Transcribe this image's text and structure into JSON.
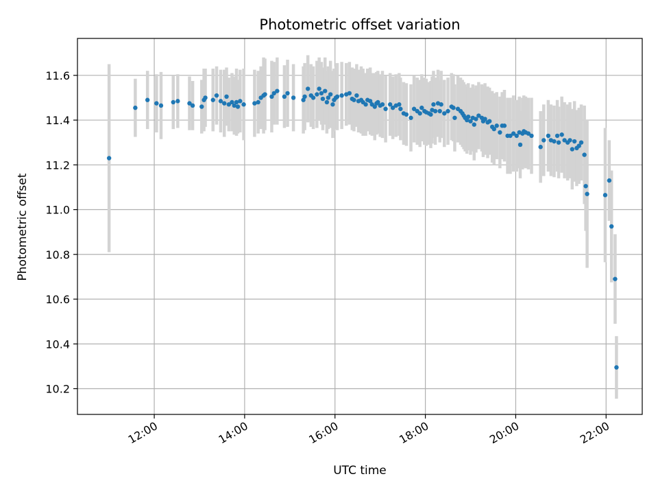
{
  "chart_data": {
    "type": "scatter",
    "title": "Photometric offset variation",
    "xlabel": "UTC time",
    "ylabel": "Photometric offset",
    "x_unit": "hours (UTC)",
    "xlim": [
      10.3,
      22.8
    ],
    "ylim": [
      10.085,
      11.765
    ],
    "x_ticks": [
      {
        "value": 12,
        "label": "12:00"
      },
      {
        "value": 14,
        "label": "14:00"
      },
      {
        "value": 16,
        "label": "16:00"
      },
      {
        "value": 18,
        "label": "18:00"
      },
      {
        "value": 20,
        "label": "20:00"
      },
      {
        "value": 22,
        "label": "22:00"
      }
    ],
    "y_ticks": [
      {
        "value": 10.2,
        "label": "10.2"
      },
      {
        "value": 10.4,
        "label": "10.4"
      },
      {
        "value": 10.6,
        "label": "10.6"
      },
      {
        "value": 10.8,
        "label": "10.8"
      },
      {
        "value": 11.0,
        "label": "11.0"
      },
      {
        "value": 11.2,
        "label": "11.2"
      },
      {
        "value": 11.4,
        "label": "11.4"
      },
      {
        "value": 11.6,
        "label": "11.6"
      }
    ],
    "grid": true,
    "legend": "none",
    "colors": {
      "marker": "#1f77b4",
      "errorbar": "#d3d3d3",
      "grid": "#b0b0b0"
    },
    "series": [
      {
        "marker": "circle",
        "points": [
          [
            11.0,
            11.23,
            0.42
          ],
          [
            11.58,
            11.455,
            0.13
          ],
          [
            11.85,
            11.49,
            0.13
          ],
          [
            12.05,
            11.475,
            0.13
          ],
          [
            12.15,
            11.465,
            0.15
          ],
          [
            12.42,
            11.48,
            0.12
          ],
          [
            12.52,
            11.485,
            0.12
          ],
          [
            12.78,
            11.475,
            0.12
          ],
          [
            12.85,
            11.465,
            0.11
          ],
          [
            13.05,
            11.46,
            0.12
          ],
          [
            13.1,
            11.49,
            0.14
          ],
          [
            13.13,
            11.5,
            0.13
          ],
          [
            13.3,
            11.49,
            0.14
          ],
          [
            13.38,
            11.51,
            0.13
          ],
          [
            13.47,
            11.485,
            0.14
          ],
          [
            13.55,
            11.475,
            0.15
          ],
          [
            13.6,
            11.505,
            0.13
          ],
          [
            13.65,
            11.47,
            0.12
          ],
          [
            13.72,
            11.48,
            0.13
          ],
          [
            13.77,
            11.465,
            0.13
          ],
          [
            13.82,
            11.48,
            0.15
          ],
          [
            13.85,
            11.46,
            0.12
          ],
          [
            13.9,
            11.485,
            0.14
          ],
          [
            13.98,
            11.47,
            0.16
          ],
          [
            14.22,
            11.475,
            0.15
          ],
          [
            14.3,
            11.48,
            0.14
          ],
          [
            14.36,
            11.5,
            0.14
          ],
          [
            14.42,
            11.51,
            0.17
          ],
          [
            14.45,
            11.515,
            0.16
          ],
          [
            14.6,
            11.505,
            0.16
          ],
          [
            14.65,
            11.52,
            0.14
          ],
          [
            14.72,
            11.53,
            0.15
          ],
          [
            14.88,
            11.505,
            0.14
          ],
          [
            14.95,
            11.52,
            0.15
          ],
          [
            15.08,
            11.5,
            0.15
          ],
          [
            15.3,
            11.49,
            0.15
          ],
          [
            15.33,
            11.505,
            0.15
          ],
          [
            15.4,
            11.54,
            0.15
          ],
          [
            15.47,
            11.51,
            0.14
          ],
          [
            15.52,
            11.5,
            0.14
          ],
          [
            15.6,
            11.515,
            0.15
          ],
          [
            15.65,
            11.54,
            0.14
          ],
          [
            15.7,
            11.52,
            0.14
          ],
          [
            15.73,
            11.495,
            0.14
          ],
          [
            15.78,
            11.53,
            0.15
          ],
          [
            15.82,
            11.48,
            0.14
          ],
          [
            15.85,
            11.5,
            0.14
          ],
          [
            15.9,
            11.515,
            0.15
          ],
          [
            15.95,
            11.47,
            0.15
          ],
          [
            15.98,
            11.49,
            0.14
          ],
          [
            16.02,
            11.5,
            0.14
          ],
          [
            16.05,
            11.505,
            0.15
          ],
          [
            16.15,
            11.51,
            0.15
          ],
          [
            16.25,
            11.515,
            0.14
          ],
          [
            16.32,
            11.52,
            0.14
          ],
          [
            16.38,
            11.495,
            0.14
          ],
          [
            16.42,
            11.49,
            0.14
          ],
          [
            16.48,
            11.51,
            0.14
          ],
          [
            16.52,
            11.485,
            0.14
          ],
          [
            16.58,
            11.49,
            0.15
          ],
          [
            16.62,
            11.48,
            0.15
          ],
          [
            16.68,
            11.47,
            0.14
          ],
          [
            16.72,
            11.49,
            0.14
          ],
          [
            16.78,
            11.485,
            0.15
          ],
          [
            16.82,
            11.47,
            0.14
          ],
          [
            16.88,
            11.46,
            0.15
          ],
          [
            16.92,
            11.475,
            0.14
          ],
          [
            16.95,
            11.48,
            0.14
          ],
          [
            17.0,
            11.465,
            0.14
          ],
          [
            17.05,
            11.47,
            0.15
          ],
          [
            17.12,
            11.45,
            0.15
          ],
          [
            17.22,
            11.47,
            0.14
          ],
          [
            17.28,
            11.455,
            0.14
          ],
          [
            17.35,
            11.465,
            0.14
          ],
          [
            17.42,
            11.47,
            0.14
          ],
          [
            17.45,
            11.45,
            0.14
          ],
          [
            17.52,
            11.43,
            0.14
          ],
          [
            17.58,
            11.425,
            0.14
          ],
          [
            17.68,
            11.41,
            0.15
          ],
          [
            17.75,
            11.45,
            0.15
          ],
          [
            17.82,
            11.44,
            0.15
          ],
          [
            17.88,
            11.43,
            0.15
          ],
          [
            17.92,
            11.455,
            0.15
          ],
          [
            17.98,
            11.44,
            0.15
          ],
          [
            18.02,
            11.435,
            0.15
          ],
          [
            18.08,
            11.43,
            0.14
          ],
          [
            18.12,
            11.425,
            0.15
          ],
          [
            18.15,
            11.445,
            0.15
          ],
          [
            18.18,
            11.47,
            0.15
          ],
          [
            18.22,
            11.44,
            0.15
          ],
          [
            18.28,
            11.475,
            0.15
          ],
          [
            18.32,
            11.44,
            0.14
          ],
          [
            18.35,
            11.47,
            0.15
          ],
          [
            18.42,
            11.43,
            0.15
          ],
          [
            18.5,
            11.44,
            0.15
          ],
          [
            18.58,
            11.46,
            0.15
          ],
          [
            18.62,
            11.455,
            0.15
          ],
          [
            18.65,
            11.41,
            0.15
          ],
          [
            18.72,
            11.45,
            0.15
          ],
          [
            18.78,
            11.44,
            0.15
          ],
          [
            18.82,
            11.43,
            0.15
          ],
          [
            18.85,
            11.42,
            0.15
          ],
          [
            18.88,
            11.41,
            0.15
          ],
          [
            18.92,
            11.4,
            0.15
          ],
          [
            18.95,
            11.415,
            0.15
          ],
          [
            19.0,
            11.395,
            0.15
          ],
          [
            19.05,
            11.41,
            0.15
          ],
          [
            19.08,
            11.38,
            0.16
          ],
          [
            19.12,
            11.405,
            0.15
          ],
          [
            19.18,
            11.42,
            0.15
          ],
          [
            19.25,
            11.41,
            0.15
          ],
          [
            19.28,
            11.395,
            0.16
          ],
          [
            19.32,
            11.405,
            0.16
          ],
          [
            19.38,
            11.39,
            0.16
          ],
          [
            19.42,
            11.395,
            0.15
          ],
          [
            19.48,
            11.37,
            0.16
          ],
          [
            19.52,
            11.36,
            0.16
          ],
          [
            19.58,
            11.375,
            0.15
          ],
          [
            19.65,
            11.345,
            0.16
          ],
          [
            19.7,
            11.375,
            0.15
          ],
          [
            19.75,
            11.375,
            0.16
          ],
          [
            19.82,
            11.33,
            0.17
          ],
          [
            19.88,
            11.33,
            0.17
          ],
          [
            19.95,
            11.34,
            0.17
          ],
          [
            20.02,
            11.33,
            0.16
          ],
          [
            20.08,
            11.345,
            0.16
          ],
          [
            20.1,
            11.29,
            0.15
          ],
          [
            20.15,
            11.34,
            0.16
          ],
          [
            20.18,
            11.35,
            0.16
          ],
          [
            20.22,
            11.345,
            0.16
          ],
          [
            20.28,
            11.34,
            0.16
          ],
          [
            20.35,
            11.33,
            0.17
          ],
          [
            20.55,
            11.28,
            0.16
          ],
          [
            20.62,
            11.31,
            0.16
          ],
          [
            20.72,
            11.33,
            0.16
          ],
          [
            20.78,
            11.31,
            0.16
          ],
          [
            20.85,
            11.305,
            0.16
          ],
          [
            20.92,
            11.33,
            0.16
          ],
          [
            20.95,
            11.3,
            0.16
          ],
          [
            21.02,
            11.335,
            0.17
          ],
          [
            21.08,
            11.31,
            0.17
          ],
          [
            21.15,
            11.3,
            0.17
          ],
          [
            21.2,
            11.31,
            0.17
          ],
          [
            21.25,
            11.27,
            0.18
          ],
          [
            21.3,
            11.305,
            0.18
          ],
          [
            21.35,
            11.275,
            0.17
          ],
          [
            21.4,
            11.285,
            0.17
          ],
          [
            21.45,
            11.3,
            0.17
          ],
          [
            21.52,
            11.245,
            0.22
          ],
          [
            21.55,
            11.105,
            0.2
          ],
          [
            21.58,
            11.07,
            0.33
          ],
          [
            21.98,
            11.065,
            0.3
          ],
          [
            22.07,
            11.13,
            0.18
          ],
          [
            22.12,
            10.925,
            0.25
          ],
          [
            22.2,
            10.69,
            0.2
          ],
          [
            22.23,
            10.295,
            0.14
          ]
        ]
      }
    ]
  }
}
